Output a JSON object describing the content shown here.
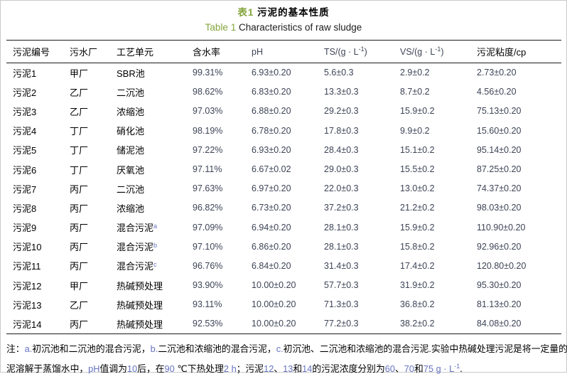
{
  "colors": {
    "green": "#84a53c",
    "latinDark": "#3d4456",
    "latinBlue": "#6673c0",
    "rule": "#1b1b1b",
    "pageBorder": "#c9c9c9"
  },
  "header": {
    "title_label": "表1",
    "title": "污泥的基本性质",
    "subtitle_label": "Table 1",
    "subtitle": "Characteristics of raw sludge"
  },
  "table": {
    "columns": [
      {
        "label": "污泥编号",
        "type": "zh"
      },
      {
        "label": "污水厂",
        "type": "zh"
      },
      {
        "label": "工艺单元",
        "type": "zh"
      },
      {
        "label": "含水率",
        "type": "zh"
      },
      {
        "label": "pH",
        "type": "latin"
      },
      {
        "label": "TS/(g · L",
        "sup": "-1",
        "post": ")",
        "type": "latin"
      },
      {
        "label": "VS/(g · L",
        "sup": "-1",
        "post": ")",
        "type": "latin"
      },
      {
        "label": "污泥粘度/cp",
        "type": "zh"
      }
    ],
    "rows": [
      {
        "id": "污泥1",
        "plant": "甲厂",
        "unit": "SBR池",
        "unit_sup": "",
        "moisture": "99.31%",
        "ph": "6.93±0.20",
        "ts": "5.6±0.3",
        "vs": "2.9±0.2",
        "viscosity": "2.73±0.20"
      },
      {
        "id": "污泥2",
        "plant": "乙厂",
        "unit": "二沉池",
        "unit_sup": "",
        "moisture": "98.62%",
        "ph": "6.83±0.20",
        "ts": "13.3±0.3",
        "vs": "8.7±0.2",
        "viscosity": "4.56±0.20"
      },
      {
        "id": "污泥3",
        "plant": "乙厂",
        "unit": "浓缩池",
        "unit_sup": "",
        "moisture": "97.03%",
        "ph": "6.88±0.20",
        "ts": "29.2±0.3",
        "vs": "15.9±0.2",
        "viscosity": "75.13±0.20"
      },
      {
        "id": "污泥4",
        "plant": "丁厂",
        "unit": "硝化池",
        "unit_sup": "",
        "moisture": "98.19%",
        "ph": "6.78±0.20",
        "ts": "17.8±0.3",
        "vs": "9.9±0.2",
        "viscosity": "15.60±0.20"
      },
      {
        "id": "污泥5",
        "plant": "丁厂",
        "unit": "储泥池",
        "unit_sup": "",
        "moisture": "97.22%",
        "ph": "6.93±0.20",
        "ts": "28.4±0.3",
        "vs": "15.1±0.2",
        "viscosity": "95.14±0.20"
      },
      {
        "id": "污泥6",
        "plant": "丁厂",
        "unit": "厌氧池",
        "unit_sup": "",
        "moisture": "97.11%",
        "ph": "6.67±0.02",
        "ts": "29.0±0.3",
        "vs": "15.5±0.2",
        "viscosity": "87.25±0.20"
      },
      {
        "id": "污泥7",
        "plant": "丙厂",
        "unit": "二沉池",
        "unit_sup": "",
        "moisture": "97.63%",
        "ph": "6.97±0.20",
        "ts": "22.0±0.3",
        "vs": "13.0±0.2",
        "viscosity": "74.37±0.20"
      },
      {
        "id": "污泥8",
        "plant": "丙厂",
        "unit": "浓缩池",
        "unit_sup": "",
        "moisture": "96.82%",
        "ph": "6.73±0.20",
        "ts": "37.2±0.3",
        "vs": "21.2±0.2",
        "viscosity": "98.03±0.20"
      },
      {
        "id": "污泥9",
        "plant": "丙厂",
        "unit": "混合污泥",
        "unit_sup": "a",
        "moisture": "97.09%",
        "ph": "6.94±0.20",
        "ts": "28.1±0.3",
        "vs": "15.9±0.2",
        "viscosity": "110.90±0.20"
      },
      {
        "id": "污泥10",
        "plant": "丙厂",
        "unit": "混合污泥",
        "unit_sup": "b",
        "moisture": "97.10%",
        "ph": "6.86±0.20",
        "ts": "28.1±0.3",
        "vs": "15.8±0.2",
        "viscosity": "92.96±0.20"
      },
      {
        "id": "污泥11",
        "plant": "丙厂",
        "unit": "混合污泥",
        "unit_sup": "c",
        "moisture": "96.76%",
        "ph": "6.84±0.20",
        "ts": "31.4±0.3",
        "vs": "17.4±0.2",
        "viscosity": "120.80±0.20"
      },
      {
        "id": "污泥12",
        "plant": "甲厂",
        "unit": "热碱预处理",
        "unit_sup": "",
        "moisture": "93.90%",
        "ph": "10.00±0.20",
        "ts": "57.7±0.3",
        "vs": "31.9±0.2",
        "viscosity": "95.30±0.20"
      },
      {
        "id": "污泥13",
        "plant": "乙厂",
        "unit": "热碱预处理",
        "unit_sup": "",
        "moisture": "93.11%",
        "ph": "10.00±0.20",
        "ts": "71.3±0.3",
        "vs": "36.8±0.2",
        "viscosity": "81.13±0.20"
      },
      {
        "id": "污泥14",
        "plant": "丙厂",
        "unit": "热碱预处理",
        "unit_sup": "",
        "moisture": "92.53%",
        "ph": "10.00±0.20",
        "ts": "77.2±0.3",
        "vs": "38.2±0.2",
        "viscosity": "84.08±0.20"
      }
    ]
  },
  "footnote": {
    "lines": [
      [
        {
          "t": "注：",
          "c": "k"
        },
        {
          "t": "a.",
          "c": "b"
        },
        {
          "t": "初沉池和二沉池的混合污泥，",
          "c": "k"
        },
        {
          "t": "b.",
          "c": "b"
        },
        {
          "t": "二沉池和浓缩池的混合污泥，",
          "c": "k"
        },
        {
          "t": "c.",
          "c": "b"
        },
        {
          "t": "初沉池、二沉池和浓缩池的混合污泥.实验中热碱处理污泥是将一定量的干污",
          "c": "k"
        }
      ],
      [
        {
          "t": "泥溶解于蒸馏水中，",
          "c": "k"
        },
        {
          "t": "pH",
          "c": "b"
        },
        {
          "t": "值调为",
          "c": "k"
        },
        {
          "t": "10",
          "c": "b"
        },
        {
          "t": "后，在",
          "c": "k"
        },
        {
          "t": "90 ",
          "c": "b"
        },
        {
          "t": "℃下热处理",
          "c": "k"
        },
        {
          "t": "2 h",
          "c": "b"
        },
        {
          "t": "；污泥",
          "c": "k"
        },
        {
          "t": "12",
          "c": "b"
        },
        {
          "t": "、",
          "c": "k"
        },
        {
          "t": "13",
          "c": "b"
        },
        {
          "t": "和",
          "c": "k"
        },
        {
          "t": "14",
          "c": "b"
        },
        {
          "t": "的污泥浓度分别为",
          "c": "k"
        },
        {
          "t": "60",
          "c": "b"
        },
        {
          "t": "、",
          "c": "k"
        },
        {
          "t": "70",
          "c": "b"
        },
        {
          "t": "和",
          "c": "k"
        },
        {
          "t": "75 g · L",
          "c": "b"
        },
        {
          "t": "-1",
          "c": "b",
          "sup": true
        },
        {
          "t": ".",
          "c": "k"
        }
      ]
    ]
  }
}
